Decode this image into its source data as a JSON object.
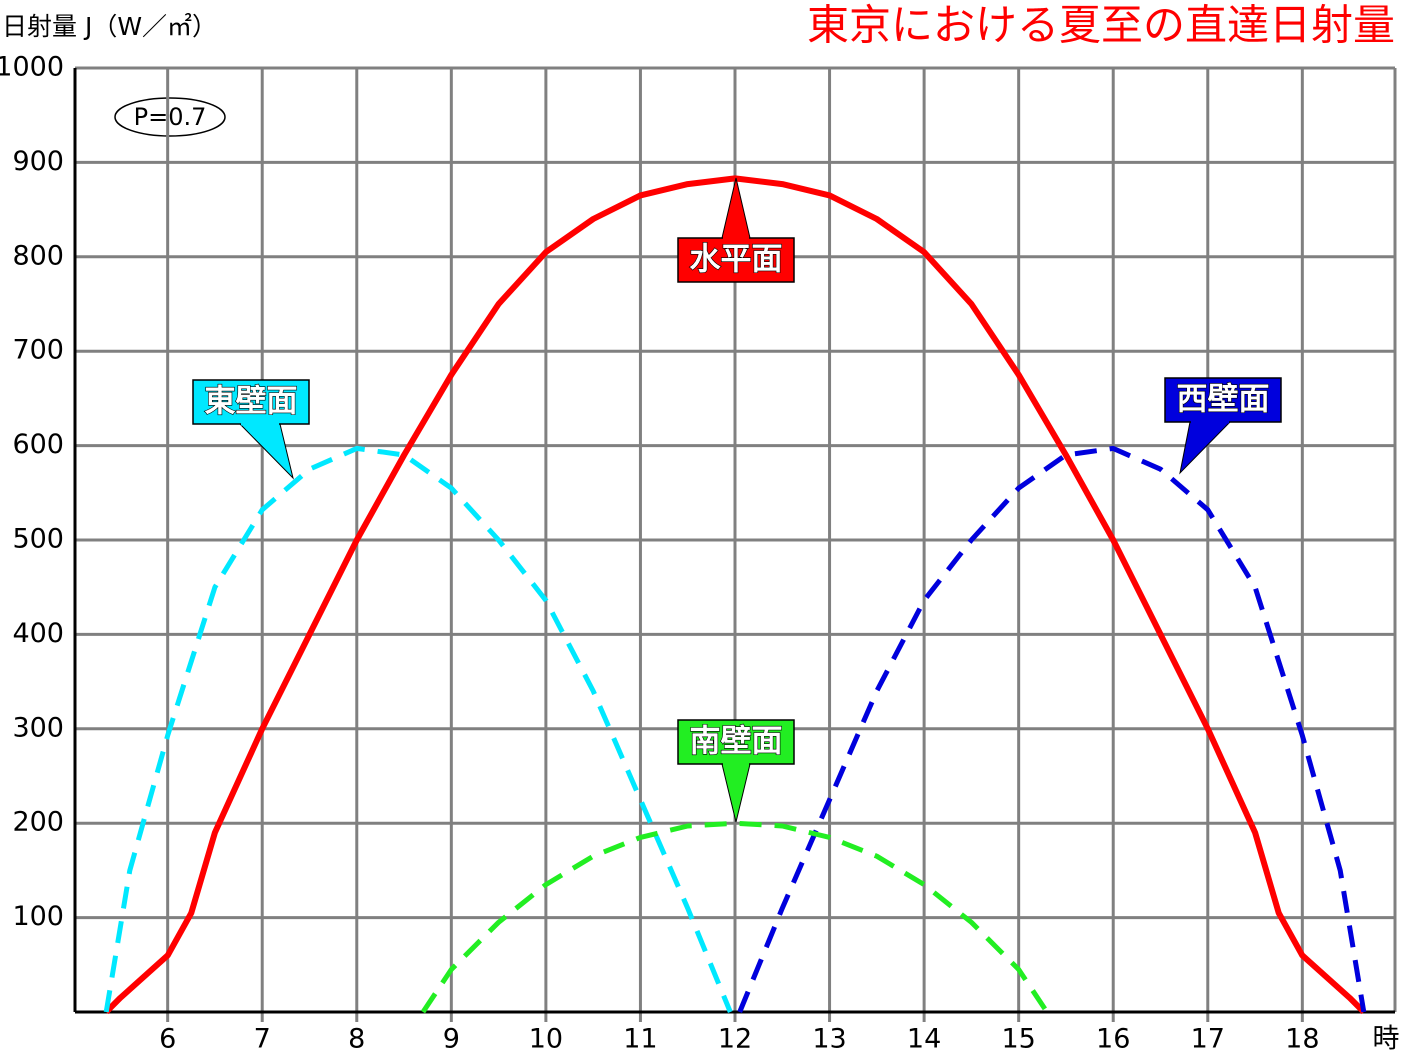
{
  "chart_data": {
    "type": "line",
    "title": "東京における夏至の直達日射量",
    "y_label": "日射量 J（W／㎡）",
    "x_label": "時",
    "annotation": "P=0.7",
    "xlim": [
      5.02,
      18.98
    ],
    "xticks": [
      6,
      7,
      8,
      9,
      10,
      11,
      12,
      13,
      14,
      15,
      16,
      17,
      18
    ],
    "ylim": [
      0,
      1000
    ],
    "yticks": [
      100,
      200,
      300,
      400,
      500,
      600,
      700,
      800,
      900,
      1000
    ],
    "grid": true,
    "series": [
      {
        "name": "水平面",
        "color": "#ff0000",
        "dashed": false,
        "x": [
          5.35,
          5.5,
          6,
          6.25,
          6.5,
          7,
          7.5,
          8,
          8.5,
          9,
          9.5,
          10,
          10.5,
          11,
          11.5,
          12,
          12.5,
          13,
          13.5,
          14,
          14.5,
          15,
          15.5,
          16,
          16.5,
          17,
          17.5,
          17.75,
          18,
          18.5,
          18.65
        ],
        "values": [
          0,
          15,
          60,
          105,
          190,
          300,
          400,
          500,
          590,
          675,
          750,
          805,
          840,
          865,
          877,
          883,
          877,
          865,
          840,
          805,
          750,
          675,
          590,
          500,
          400,
          300,
          190,
          105,
          60,
          15,
          0
        ]
      },
      {
        "name": "東壁面",
        "color": "#00e8ff",
        "dashed": true,
        "x": [
          5.35,
          5.6,
          6,
          6.5,
          7,
          7.5,
          8,
          8.5,
          9,
          9.5,
          10,
          10.5,
          11,
          11.5,
          11.95
        ],
        "values": [
          0,
          150,
          293,
          450,
          532,
          575,
          597,
          590,
          555,
          500,
          436,
          340,
          225,
          110,
          0
        ]
      },
      {
        "name": "西壁面",
        "color": "#0000dd",
        "dashed": true,
        "x": [
          12.05,
          12.5,
          13,
          13.5,
          14,
          14.5,
          15,
          15.5,
          16,
          16.5,
          17,
          17.5,
          18,
          18.4,
          18.65
        ],
        "values": [
          0,
          110,
          225,
          340,
          436,
          500,
          555,
          590,
          597,
          575,
          532,
          450,
          293,
          150,
          0
        ]
      },
      {
        "name": "南壁面",
        "color": "#22ee22",
        "dashed": true,
        "x": [
          8.7,
          9,
          9.5,
          10,
          10.5,
          11,
          11.5,
          12,
          12.5,
          13,
          13.5,
          14,
          14.5,
          15,
          15.3
        ],
        "values": [
          0,
          45,
          95,
          135,
          165,
          185,
          197,
          200,
          197,
          185,
          165,
          135,
          95,
          45,
          0
        ]
      }
    ]
  }
}
